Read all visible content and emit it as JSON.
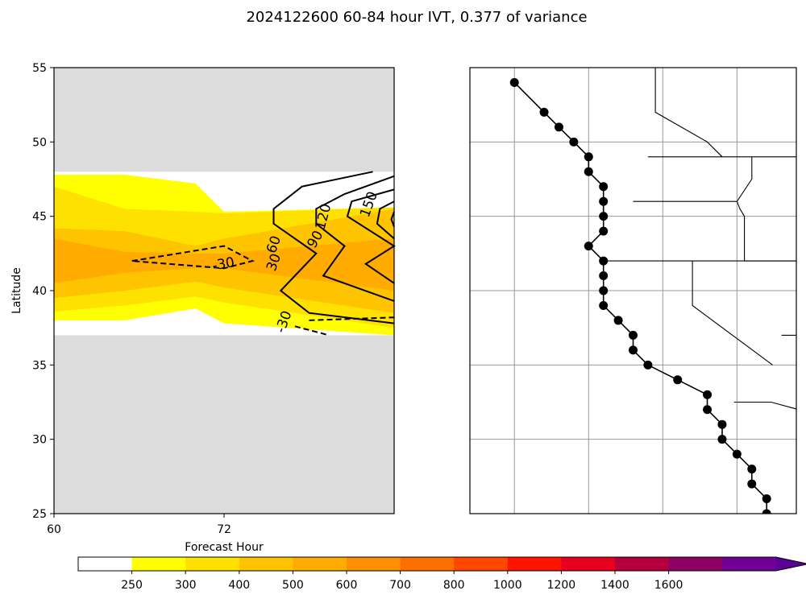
{
  "figure": {
    "title": "2024122600 60-84 hour IVT, 0.377 of variance"
  },
  "chart_data": [
    {
      "type": "contour",
      "xlabel": "Forecast Hour",
      "ylabel": "Latitude",
      "xlim": [
        60,
        84
      ],
      "ylim": [
        25,
        55
      ],
      "xticks": [
        "60",
        "72"
      ],
      "yticks": [
        "25",
        "30",
        "35",
        "40",
        "45",
        "50",
        "55"
      ],
      "data_extent_lat": [
        37,
        48
      ],
      "filled_levels_ivt": [
        {
          "range": [
            250,
            300
          ],
          "color": "#ffff00",
          "lat_band": [
            [
              38.0,
              47.8
            ],
            [
              38.0,
              47.8
            ],
            [
              38.8,
              47.2
            ],
            [
              37.8,
              45.3
            ],
            [
              37.0,
              45.6
            ]
          ],
          "x": [
            60,
            65,
            70,
            72,
            84
          ]
        },
        {
          "range": [
            300,
            400
          ],
          "color": "#ffe100",
          "lat_band": [
            [
              38.6,
              47.0
            ],
            [
              39.0,
              45.5
            ],
            [
              39.6,
              45.3
            ],
            [
              39.2,
              45.2
            ],
            [
              37.5,
              45.6
            ]
          ],
          "x": [
            60,
            65,
            70,
            72,
            84
          ]
        },
        {
          "range": [
            400,
            500
          ],
          "color": "#ffc400",
          "lat_band": [
            [
              39.5,
              44.2
            ],
            [
              40.0,
              44.0
            ],
            [
              40.6,
              43.0
            ],
            [
              40.2,
              43.5
            ],
            [
              38.5,
              45.5
            ]
          ],
          "x": [
            60,
            65,
            70,
            72,
            84
          ]
        },
        {
          "range": [
            500,
            600
          ],
          "color": "#ffab00",
          "lat_band": [
            [
              40.5,
              43.5
            ],
            [
              41.2,
              42.6
            ],
            [
              41.5,
              42.5
            ],
            [
              41.5,
              42.5
            ],
            [
              40.0,
              43.5
            ]
          ],
          "x": [
            60,
            65,
            70,
            72,
            84
          ]
        }
      ],
      "contours": [
        {
          "label": "-30",
          "style": "dashed",
          "lon_lat": [
            [
              65.5,
              42
            ],
            [
              72,
              43
            ],
            [
              74,
              42
            ],
            [
              72,
              41.5
            ],
            [
              65.5,
              42
            ]
          ]
        },
        {
          "label": "-30",
          "style": "dashed",
          "lon_lat": [
            [
              78,
              38
            ],
            [
              84,
              38.2
            ]
          ]
        },
        {
          "label": "-30",
          "style": "dashed",
          "lon_lat": [
            [
              77,
              37.6
            ],
            [
              79.4,
              37.0
            ]
          ]
        },
        {
          "label": "30",
          "style": "solid",
          "lon_lat": [
            [
              82.5,
              48
            ],
            [
              77.5,
              47
            ],
            [
              75.5,
              45.5
            ],
            [
              75.5,
              44.5
            ],
            [
              78.5,
              42.5
            ],
            [
              76,
              40
            ],
            [
              78,
              38.5
            ],
            [
              84,
              37.8
            ]
          ]
        },
        {
          "label": "60",
          "style": "solid",
          "lon_lat": [
            [
              84,
              47.7
            ],
            [
              80.5,
              46.5
            ],
            [
              78.5,
              45.5
            ],
            [
              78.5,
              44.5
            ],
            [
              80.5,
              43
            ],
            [
              79,
              41
            ],
            [
              84,
              39.3
            ]
          ]
        },
        {
          "label": "90",
          "style": "solid",
          "lon_lat": [
            [
              84,
              46.8
            ],
            [
              81,
              46
            ],
            [
              80.7,
              45
            ],
            [
              84,
              43
            ],
            [
              82,
              41.8
            ],
            [
              84,
              40.5
            ]
          ]
        },
        {
          "label": "120",
          "style": "solid",
          "lon_lat": [
            [
              84,
              46
            ],
            [
              83,
              45.5
            ],
            [
              82.8,
              44.5
            ],
            [
              84,
              43.5
            ]
          ]
        },
        {
          "label": "150",
          "style": "solid",
          "lon_lat": [
            [
              84,
              45.3
            ],
            [
              83.8,
              44.8
            ],
            [
              84,
              44.3
            ]
          ]
        }
      ],
      "contour_labels": [
        {
          "text": "-30",
          "x": 72,
          "y": 41.5,
          "rot": -10
        },
        {
          "text": "-30",
          "x": 76.5,
          "y": 37.8,
          "rot": -70
        },
        {
          "text": "60",
          "x": 75.8,
          "y": 43.0,
          "rot": -70
        },
        {
          "text": "30",
          "x": 75.8,
          "y": 41.8,
          "rot": -70
        },
        {
          "text": "90",
          "x": 78.7,
          "y": 43.3,
          "rot": -60
        },
        {
          "text": "120",
          "x": 79.3,
          "y": 44.9,
          "rot": -75
        },
        {
          "text": "150",
          "x": 82.5,
          "y": 45.7,
          "rot": -70
        }
      ]
    },
    {
      "type": "map",
      "region": "US West Coast",
      "lon_range": [
        -135,
        -113
      ],
      "lat_range": [
        25,
        55
      ],
      "gridline_lons": [
        -132,
        -127,
        -122,
        -117
      ],
      "gridline_lats": [
        30,
        35,
        40,
        45,
        50
      ],
      "coast_points_latlon": [
        [
          54,
          -132
        ],
        [
          52,
          -130
        ],
        [
          51,
          -129
        ],
        [
          50,
          -128
        ],
        [
          49,
          -127
        ],
        [
          48,
          -127
        ],
        [
          47,
          -126
        ],
        [
          46,
          -126
        ],
        [
          45,
          -126
        ],
        [
          44,
          -126
        ],
        [
          43,
          -127
        ],
        [
          42,
          -126
        ],
        [
          41,
          -126
        ],
        [
          40,
          -126
        ],
        [
          39,
          -126
        ],
        [
          38,
          -125
        ],
        [
          37,
          -124
        ],
        [
          36,
          -124
        ],
        [
          35,
          -123
        ],
        [
          34,
          -121
        ],
        [
          33,
          -119
        ],
        [
          32,
          -119
        ],
        [
          31,
          -118
        ],
        [
          30,
          -118
        ],
        [
          29,
          -117
        ],
        [
          28,
          -116
        ],
        [
          27,
          -116
        ],
        [
          26,
          -115
        ],
        [
          25,
          -115
        ]
      ]
    }
  ],
  "colorbar": {
    "ticks": [
      "250",
      "300",
      "400",
      "500",
      "600",
      "700",
      "800",
      "1000",
      "1200",
      "1400",
      "1600"
    ],
    "colors": [
      "#ffffff",
      "#ffff00",
      "#ffe100",
      "#ffc400",
      "#ffab00",
      "#ff8e00",
      "#ff6e00",
      "#ff4700",
      "#ff1400",
      "#e6001e",
      "#b4003c",
      "#8c0064",
      "#6e0096",
      "#5a0096"
    ]
  }
}
